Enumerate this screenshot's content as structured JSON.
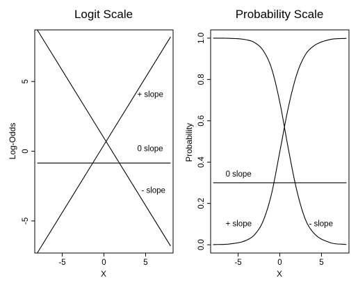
{
  "chart_data": [
    {
      "type": "line",
      "title": "Logit Scale",
      "xlabel": "X",
      "ylabel": "Log-Odds",
      "xlim": [
        -8.3,
        8.3
      ],
      "ylim": [
        -7.3,
        8.7
      ],
      "xticks": [
        -5,
        0,
        5
      ],
      "xtick_labels": [
        "-5",
        "0",
        "5"
      ],
      "yticks": [
        -5,
        0,
        5
      ],
      "ytick_labels": [
        "-5",
        "0",
        "5"
      ],
      "grid": false,
      "series": [
        {
          "name": "+ slope",
          "x": [
            -8,
            8
          ],
          "y": [
            -7.3,
            8.2
          ]
        },
        {
          "name": "0 slope",
          "x": [
            -8,
            8
          ],
          "y": [
            -0.85,
            -0.85
          ]
        },
        {
          "name": "- slope",
          "x": [
            -8,
            8
          ],
          "y": [
            8.7,
            -6.8
          ]
        }
      ],
      "annotations": [
        {
          "text": "+ slope",
          "x": 4.0,
          "y": 3.9
        },
        {
          "text": "0 slope",
          "x": 4.0,
          "y": 0.0
        },
        {
          "text": "- slope",
          "x": 4.5,
          "y": -3.0
        }
      ]
    },
    {
      "type": "line",
      "title": "Probability Scale",
      "xlabel": "X",
      "ylabel": "Probability",
      "xlim": [
        -8.3,
        8.3
      ],
      "ylim": [
        -0.04,
        1.04
      ],
      "xticks": [
        -5,
        0,
        5
      ],
      "xtick_labels": [
        "-5",
        "0",
        "5"
      ],
      "yticks": [
        0.0,
        0.2,
        0.4,
        0.6,
        0.8,
        1.0
      ],
      "ytick_labels": [
        "0.0",
        "0.2",
        "0.4",
        "0.6",
        "0.8",
        "1.0"
      ],
      "grid": false,
      "series": [
        {
          "name": "+ slope",
          "x": [
            -8,
            -6,
            -4,
            -3,
            -2,
            -1,
            0,
            1,
            2,
            3,
            4,
            6,
            8
          ],
          "y": [
            0.0007,
            0.004,
            0.022,
            0.05,
            0.115,
            0.245,
            0.45,
            0.66,
            0.82,
            0.915,
            0.96,
            0.993,
            0.999
          ]
        },
        {
          "name": "0 slope",
          "x": [
            -8,
            8
          ],
          "y": [
            0.3,
            0.3
          ]
        },
        {
          "name": "- slope",
          "x": [
            -8,
            -6,
            -4,
            -3,
            -2,
            -1,
            0,
            1,
            2,
            3,
            4,
            6,
            8
          ],
          "y": [
            0.9998,
            0.999,
            0.992,
            0.978,
            0.94,
            0.855,
            0.69,
            0.47,
            0.27,
            0.13,
            0.06,
            0.011,
            0.0012
          ]
        }
      ],
      "annotations": [
        {
          "text": "0 slope",
          "x": -6.5,
          "y": 0.33
        },
        {
          "text": "+ slope",
          "x": -6.5,
          "y": 0.09
        },
        {
          "text": "- slope",
          "x": 3.5,
          "y": 0.09
        }
      ]
    }
  ]
}
